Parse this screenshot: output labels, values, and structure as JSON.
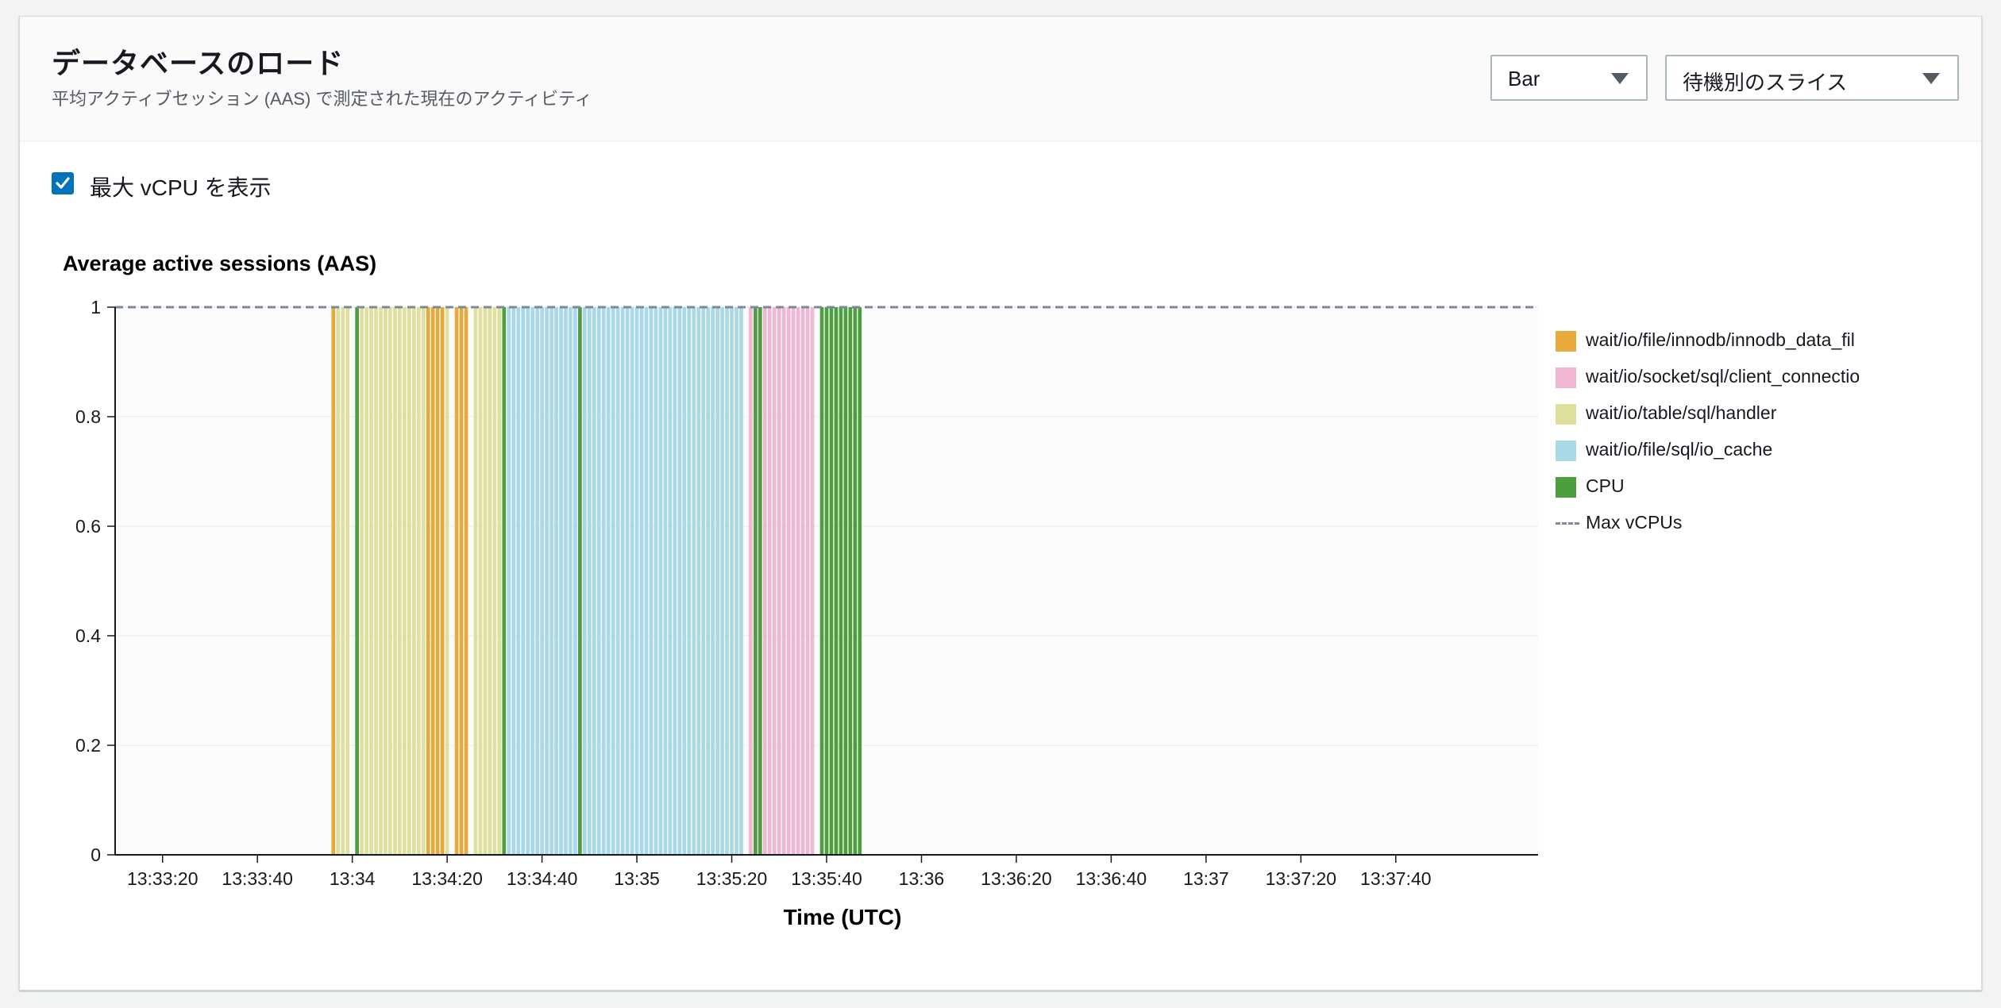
{
  "header": {
    "title": "データベースのロード",
    "subtitle": "平均アクティブセッション (AAS) で測定された現在のアクティビティ"
  },
  "controls": {
    "chart_type": "Bar",
    "slice_by": "待機別のスライス",
    "show_max_vcpu_label": "最大 vCPU を表示",
    "show_max_vcpu_checked": true
  },
  "colors": {
    "innodb": "#e8a93b",
    "client": "#f2b5d2",
    "handler": "#dfe09d",
    "io_cache": "#a9d8e6",
    "cpu": "#4c9e3f",
    "max_vcpu": "#7d8998"
  },
  "chart_data": {
    "type": "bar",
    "title": "Average active sessions (AAS)",
    "xlabel": "Time (UTC)",
    "ylabel": "",
    "ylim": [
      0,
      1
    ],
    "yticks": [
      "0",
      "0.2",
      "0.4",
      "0.6",
      "0.8",
      "1"
    ],
    "xlim": [
      "13:33:10",
      "13:38:10"
    ],
    "xticks": [
      "13:33:20",
      "13:33:40",
      "13:34",
      "13:34:20",
      "13:34:40",
      "13:35",
      "13:35:20",
      "13:35:40",
      "13:36",
      "13:36:20",
      "13:36:40",
      "13:37",
      "13:37:20",
      "13:37:40"
    ],
    "bar_interval_seconds": 1,
    "grid": true,
    "legend_position": "right",
    "max_vcpus": 1,
    "series": [
      {
        "name": "wait/io/file/innodb/innodb_data_fil",
        "color_key": "innodb",
        "times": [
          "13:33:56",
          "13:34:16",
          "13:34:17",
          "13:34:18",
          "13:34:19",
          "13:34:22",
          "13:34:23",
          "13:34:24"
        ]
      },
      {
        "name": "wait/io/socket/sql/client_connectio",
        "color_key": "client",
        "times": [
          "13:35:24",
          "13:35:27",
          "13:35:28",
          "13:35:29",
          "13:35:30",
          "13:35:31",
          "13:35:32",
          "13:35:33",
          "13:35:34",
          "13:35:35",
          "13:35:36",
          "13:35:37"
        ]
      },
      {
        "name": "wait/io/table/sql/handler",
        "color_key": "handler",
        "times": [
          "13:33:57",
          "13:33:58",
          "13:33:59",
          "13:34:02",
          "13:34:03",
          "13:34:04",
          "13:34:05",
          "13:34:06",
          "13:34:07",
          "13:34:08",
          "13:34:09",
          "13:34:10",
          "13:34:11",
          "13:34:12",
          "13:34:13",
          "13:34:14",
          "13:34:15",
          "13:34:20",
          "13:34:26",
          "13:34:27",
          "13:34:28",
          "13:34:29",
          "13:34:30",
          "13:34:31"
        ]
      },
      {
        "name": "wait/io/file/sql/io_cache",
        "color_key": "io_cache",
        "times": [
          "13:34:33",
          "13:34:34",
          "13:34:35",
          "13:34:36",
          "13:34:37",
          "13:34:38",
          "13:34:39",
          "13:34:40",
          "13:34:41",
          "13:34:42",
          "13:34:43",
          "13:34:44",
          "13:34:45",
          "13:34:46",
          "13:34:47",
          "13:34:49",
          "13:34:50",
          "13:34:51",
          "13:34:52",
          "13:34:53",
          "13:34:54",
          "13:34:55",
          "13:34:56",
          "13:34:57",
          "13:34:58",
          "13:34:59",
          "13:35:00",
          "13:35:01",
          "13:35:02",
          "13:35:03",
          "13:35:04",
          "13:35:05",
          "13:35:06",
          "13:35:07",
          "13:35:08",
          "13:35:09",
          "13:35:10",
          "13:35:11",
          "13:35:12",
          "13:35:13",
          "13:35:14",
          "13:35:15",
          "13:35:16",
          "13:35:17",
          "13:35:18",
          "13:35:19",
          "13:35:20",
          "13:35:21",
          "13:35:22"
        ]
      },
      {
        "name": "CPU",
        "color_key": "cpu",
        "times": [
          "13:34:01",
          "13:34:32",
          "13:34:48",
          "13:35:25",
          "13:35:26",
          "13:35:39",
          "13:35:40",
          "13:35:41",
          "13:35:42",
          "13:35:43",
          "13:35:44",
          "13:35:45",
          "13:35:46",
          "13:35:47"
        ]
      }
    ]
  },
  "legend": [
    {
      "label": "wait/io/file/innodb/innodb_data_fil",
      "color_key": "innodb",
      "kind": "box"
    },
    {
      "label": "wait/io/socket/sql/client_connectio",
      "color_key": "client",
      "kind": "box"
    },
    {
      "label": "wait/io/table/sql/handler",
      "color_key": "handler",
      "kind": "box"
    },
    {
      "label": "wait/io/file/sql/io_cache",
      "color_key": "io_cache",
      "kind": "box"
    },
    {
      "label": "CPU",
      "color_key": "cpu",
      "kind": "box"
    },
    {
      "label": "Max vCPUs",
      "color_key": "max_vcpu",
      "kind": "dash"
    }
  ]
}
